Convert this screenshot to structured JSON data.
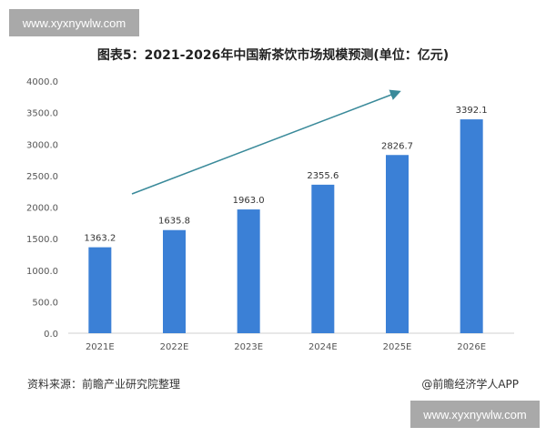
{
  "watermark": "www.xyxnywlw.com",
  "chart_data": {
    "type": "bar",
    "title": "图表5：2021-2026年中国新茶饮市场规模预测(单位：亿元)",
    "categories": [
      "2021E",
      "2022E",
      "2023E",
      "2024E",
      "2025E",
      "2026E"
    ],
    "values": [
      1363.2,
      1635.8,
      1963.0,
      2355.6,
      2826.7,
      3392.1
    ],
    "value_labels": [
      "1363.2",
      "1635.8",
      "1963.0",
      "2355.6",
      "2826.7",
      "3392.1"
    ],
    "ylim": [
      0,
      4000
    ],
    "yticks": [
      "0.0",
      "500.0",
      "1000.0",
      "1500.0",
      "2000.0",
      "2500.0",
      "3000.0",
      "3500.0",
      "4000.0"
    ],
    "grid": false,
    "bar_color": "#3b80d6",
    "arrow_color": "#3a8a9a",
    "annotation": "upward trend arrow"
  },
  "footer": {
    "source": "资料来源：前瞻产业研究院整理",
    "credit": "@前瞻经济学人APP"
  }
}
